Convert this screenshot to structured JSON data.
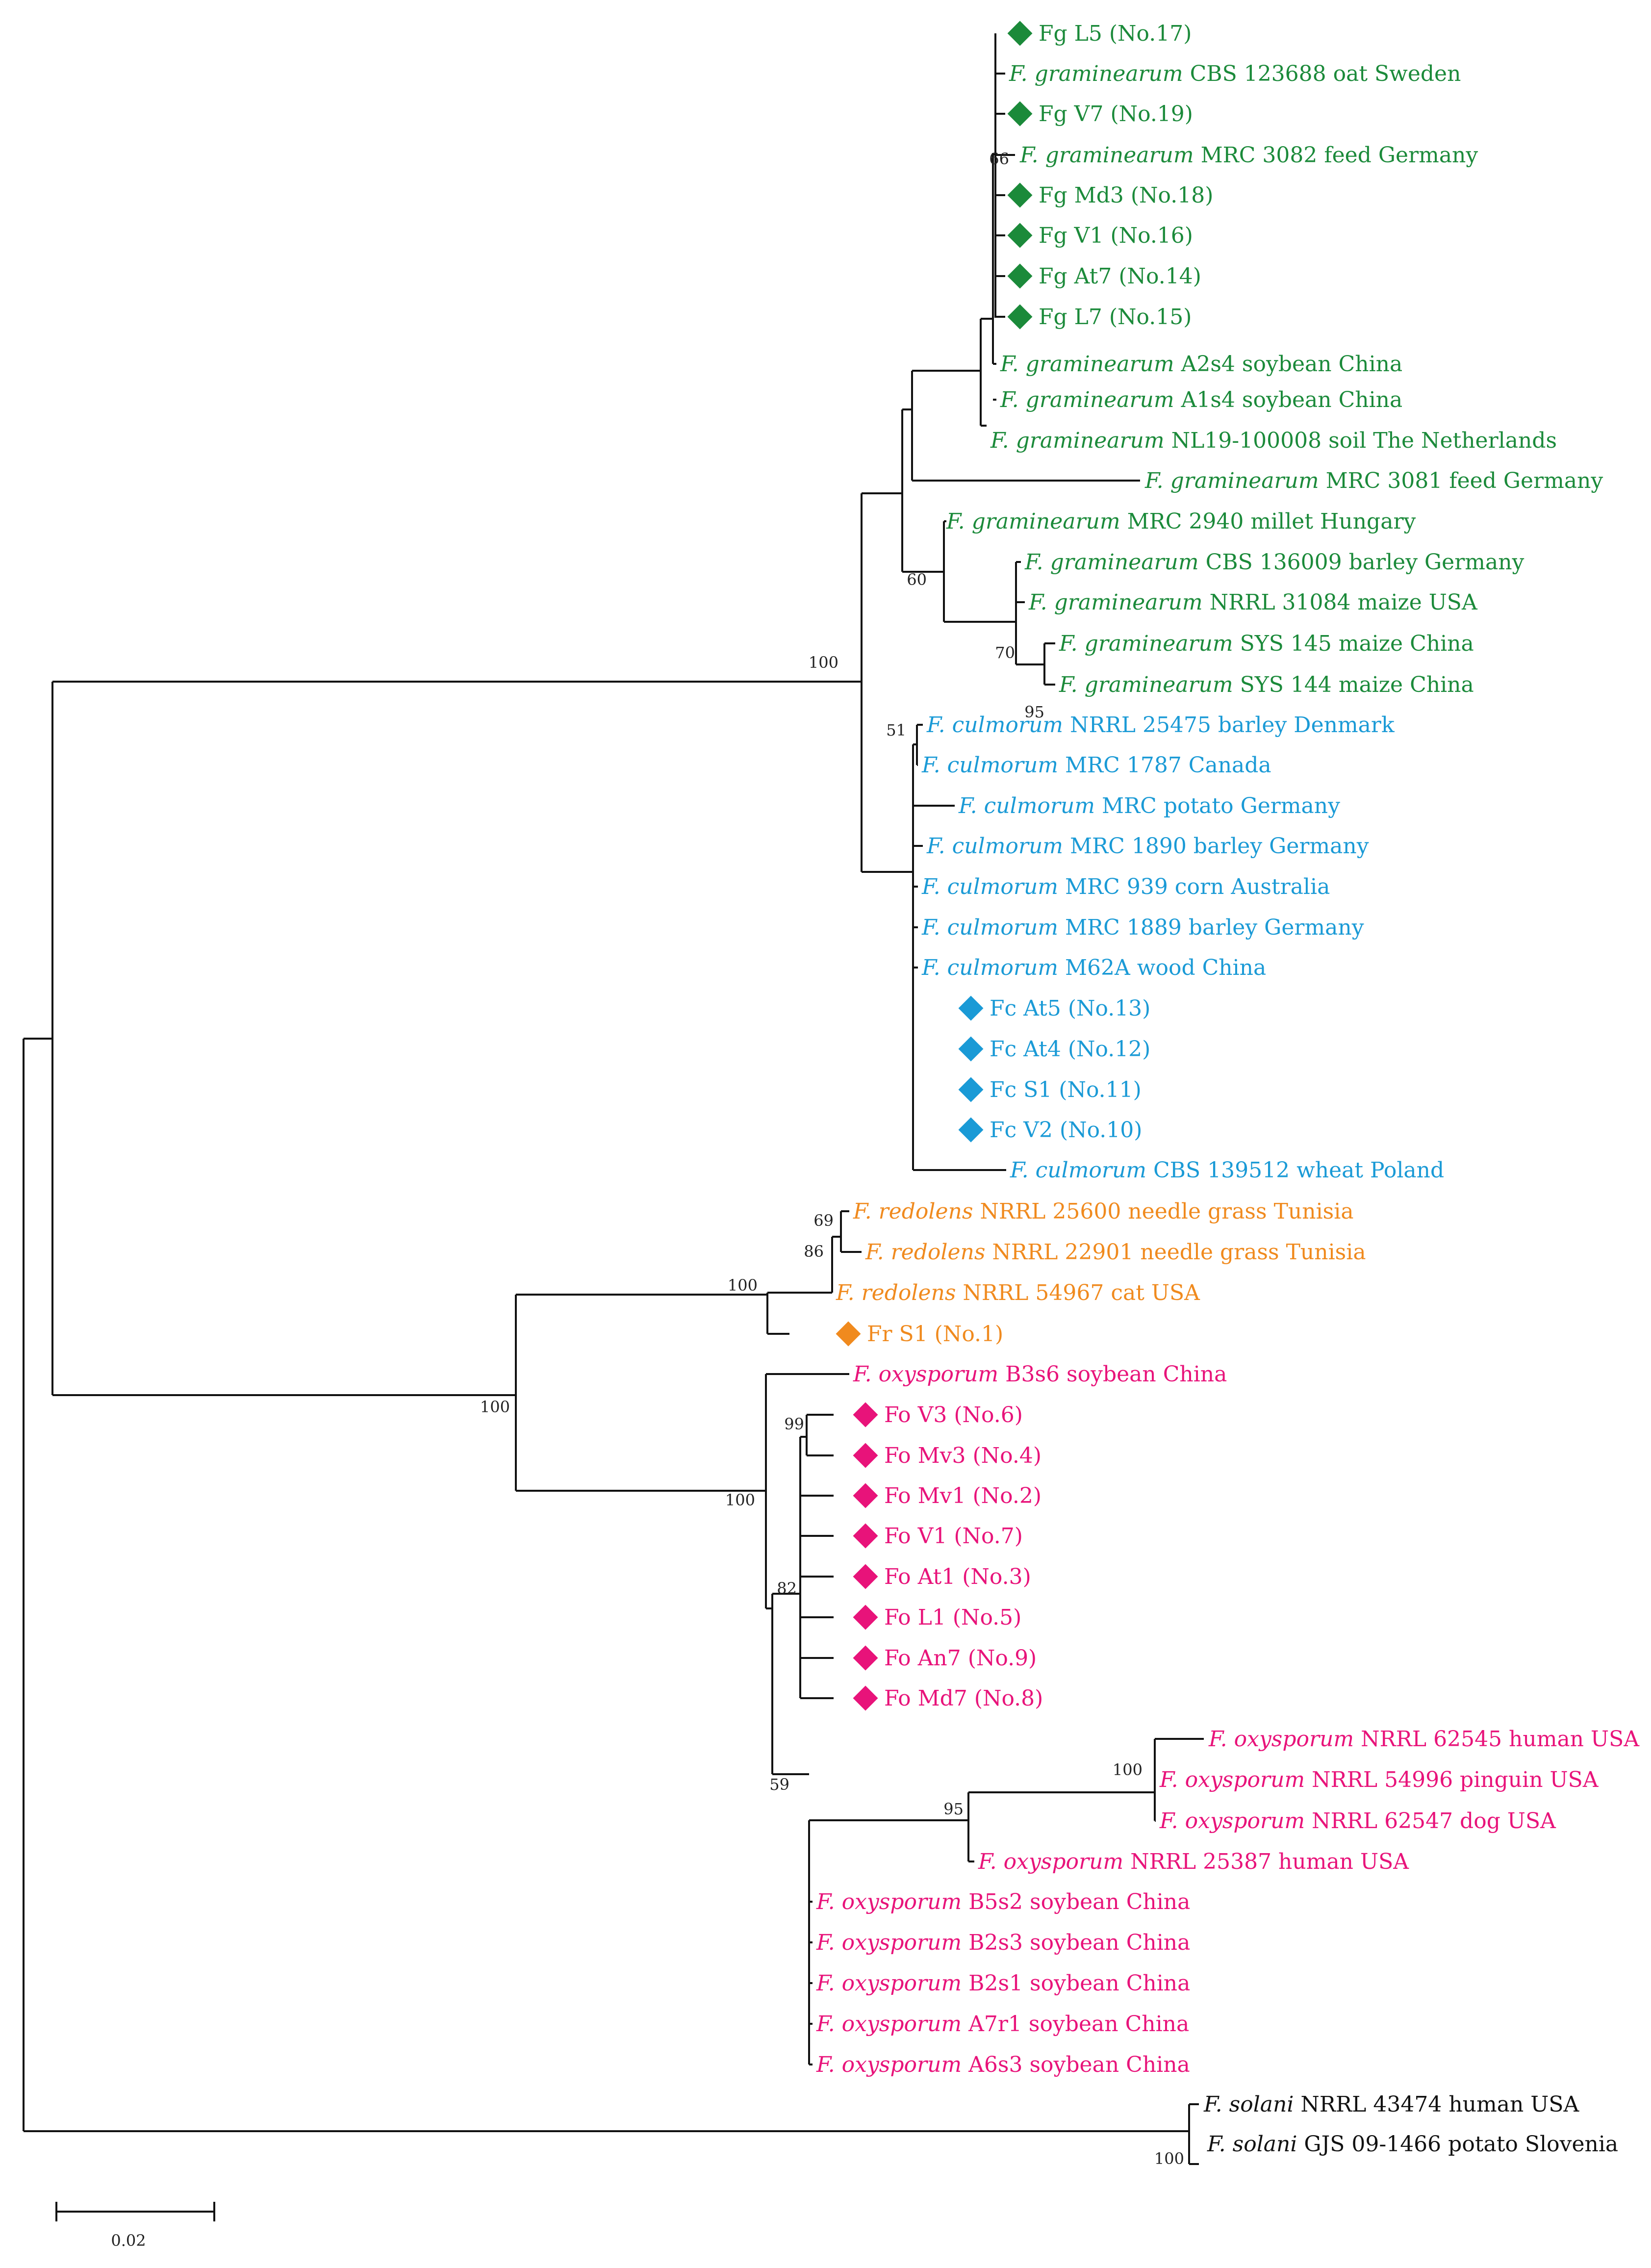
{
  "colors": {
    "graminearum": "#1b8a3a",
    "culmorum": "#1a9ad6",
    "redolens": "#f08a1e",
    "oxysporum": "#e8137a",
    "solani": "#111111",
    "line": "#111111"
  },
  "scale_bar": {
    "value": 0.02,
    "label": "0.02"
  },
  "tips": [
    {
      "id": "fgL5",
      "plain": "Fg L5 (No.17)",
      "group": "graminearum",
      "marker": true
    },
    {
      "id": "fgCBS123688",
      "species": "F. graminearum",
      "rest": " CBS 123688 oat Sweden",
      "group": "graminearum"
    },
    {
      "id": "fgV7",
      "plain": "Fg V7 (No.19)",
      "group": "graminearum",
      "marker": true
    },
    {
      "id": "fgMRC3082",
      "species": "F. graminearum",
      "rest": " MRC 3082 feed Germany",
      "group": "graminearum"
    },
    {
      "id": "fgMd3",
      "plain": "Fg Md3 (No.18)",
      "group": "graminearum",
      "marker": true
    },
    {
      "id": "fgV1",
      "plain": "Fg V1 (No.16)",
      "group": "graminearum",
      "marker": true
    },
    {
      "id": "fgAt7",
      "plain": "Fg At7 (No.14)",
      "group": "graminearum",
      "marker": true
    },
    {
      "id": "fgL7",
      "plain": "Fg L7 (No.15)",
      "group": "graminearum",
      "marker": true
    },
    {
      "id": "fgA2s4",
      "species": "F. graminearum",
      "rest": " A2s4 soybean China",
      "group": "graminearum"
    },
    {
      "id": "fgA1s4",
      "species": "F. graminearum",
      "rest": " A1s4 soybean China",
      "group": "graminearum"
    },
    {
      "id": "fgNL19",
      "species": "F. graminearum",
      "rest": " NL19-100008 soil The Netherlands",
      "group": "graminearum"
    },
    {
      "id": "fgMRC3081",
      "species": "F. graminearum",
      "rest": " MRC 3081 feed Germany",
      "group": "graminearum"
    },
    {
      "id": "fgMRC2940",
      "species": "F. graminearum",
      "rest": " MRC 2940 millet Hungary",
      "group": "graminearum"
    },
    {
      "id": "fgCBS136009",
      "species": "F. graminearum",
      "rest": " CBS 136009 barley Germany",
      "group": "graminearum"
    },
    {
      "id": "fgNRRL31084",
      "species": "F. graminearum",
      "rest": " NRRL 31084 maize USA",
      "group": "graminearum"
    },
    {
      "id": "fgSYS145",
      "species": "F. graminearum",
      "rest": " SYS 145 maize China",
      "group": "graminearum"
    },
    {
      "id": "fgSYS144",
      "species": "F. graminearum",
      "rest": " SYS 144 maize China",
      "group": "graminearum"
    },
    {
      "id": "fcNRRL25475",
      "species": "F. culmorum",
      "rest": " NRRL 25475 barley Denmark",
      "group": "culmorum"
    },
    {
      "id": "fcMRC1787",
      "species": "F. culmorum",
      "rest": " MRC 1787 Canada",
      "group": "culmorum"
    },
    {
      "id": "fcMRCpotato",
      "species": "F. culmorum",
      "rest": " MRC potato Germany",
      "group": "culmorum"
    },
    {
      "id": "fcMRC1890",
      "species": "F. culmorum",
      "rest": " MRC 1890 barley Germany",
      "group": "culmorum"
    },
    {
      "id": "fcMRC939",
      "species": "F. culmorum",
      "rest": " MRC 939 corn Australia",
      "group": "culmorum"
    },
    {
      "id": "fcMRC1889",
      "species": "F. culmorum",
      "rest": " MRC 1889 barley Germany",
      "group": "culmorum"
    },
    {
      "id": "fcM62A",
      "species": "F. culmorum",
      "rest": " M62A wood China",
      "group": "culmorum"
    },
    {
      "id": "fcAt5",
      "plain": "Fc At5 (No.13)",
      "group": "culmorum",
      "marker": true
    },
    {
      "id": "fcAt4",
      "plain": "Fc At4 (No.12)",
      "group": "culmorum",
      "marker": true
    },
    {
      "id": "fcS1",
      "plain": "Fc S1 (No.11)",
      "group": "culmorum",
      "marker": true
    },
    {
      "id": "fcV2",
      "plain": "Fc V2 (No.10)",
      "group": "culmorum",
      "marker": true
    },
    {
      "id": "fcCBS139512",
      "species": "F. culmorum",
      "rest": " CBS 139512 wheat Poland",
      "group": "culmorum"
    },
    {
      "id": "frNRRL25600",
      "species": "F. redolens",
      "rest": " NRRL 25600 needle grass Tunisia",
      "group": "redolens"
    },
    {
      "id": "frNRRL22901",
      "species": "F. redolens",
      "rest": " NRRL 22901 needle grass Tunisia",
      "group": "redolens"
    },
    {
      "id": "frNRRL54967",
      "species": "F. redolens",
      "rest": " NRRL 54967 cat USA",
      "group": "redolens"
    },
    {
      "id": "frS1",
      "plain": "Fr S1 (No.1)",
      "group": "redolens",
      "marker": true
    },
    {
      "id": "foB3s6",
      "species": "F. oxysporum",
      "rest": " B3s6 soybean China",
      "group": "oxysporum"
    },
    {
      "id": "foV3",
      "plain": "Fo V3 (No.6)",
      "group": "oxysporum",
      "marker": true
    },
    {
      "id": "foMv3",
      "plain": "Fo Mv3 (No.4)",
      "group": "oxysporum",
      "marker": true
    },
    {
      "id": "foMv1",
      "plain": "Fo Mv1 (No.2)",
      "group": "oxysporum",
      "marker": true
    },
    {
      "id": "foV1",
      "plain": "Fo V1 (No.7)",
      "group": "oxysporum",
      "marker": true
    },
    {
      "id": "foAt1",
      "plain": "Fo At1 (No.3)",
      "group": "oxysporum",
      "marker": true
    },
    {
      "id": "foL1",
      "plain": "Fo L1 (No.5)",
      "group": "oxysporum",
      "marker": true
    },
    {
      "id": "foAn7",
      "plain": "Fo An7 (No.9)",
      "group": "oxysporum",
      "marker": true
    },
    {
      "id": "foMd7",
      "plain": "Fo Md7 (No.8)",
      "group": "oxysporum",
      "marker": true
    },
    {
      "id": "foNRRL62545",
      "species": "F. oxysporum",
      "rest": " NRRL 62545 human USA",
      "group": "oxysporum"
    },
    {
      "id": "foNRRL54996",
      "species": "F. oxysporum",
      "rest": " NRRL 54996 pinguin USA",
      "group": "oxysporum"
    },
    {
      "id": "foNRRL62547",
      "species": "F. oxysporum",
      "rest": " NRRL 62547 dog USA",
      "group": "oxysporum"
    },
    {
      "id": "foNRRL25387",
      "species": "F. oxysporum",
      "rest": " NRRL 25387 human USA",
      "group": "oxysporum"
    },
    {
      "id": "foB5s2",
      "species": "F. oxysporum",
      "rest": " B5s2 soybean China",
      "group": "oxysporum"
    },
    {
      "id": "foB2s3",
      "species": "F. oxysporum",
      "rest": " B2s3 soybean China",
      "group": "oxysporum"
    },
    {
      "id": "foB2s1",
      "species": "F. oxysporum",
      "rest": " B2s1 soybean China",
      "group": "oxysporum"
    },
    {
      "id": "foA7r1",
      "species": "F. oxysporum",
      "rest": " A7r1 soybean China",
      "group": "oxysporum"
    },
    {
      "id": "foA6s3",
      "species": "F. oxysporum",
      "rest": " A6s3 soybean China",
      "group": "oxysporum"
    },
    {
      "id": "fsNRRL43474",
      "species": "F. solani",
      "rest": " NRRL 43474 human USA",
      "group": "solani"
    },
    {
      "id": "fsGJS09",
      "species": "F. solani",
      "rest": " GJS 09-1466 potato Slovenia",
      "group": "solani"
    }
  ],
  "bootstrap": [
    {
      "id": "b66",
      "value": "66"
    },
    {
      "id": "b60",
      "value": "60"
    },
    {
      "id": "b70",
      "value": "70"
    },
    {
      "id": "b95a",
      "value": "95"
    },
    {
      "id": "b100root",
      "value": "100"
    },
    {
      "id": "b51",
      "value": "51"
    },
    {
      "id": "b69",
      "value": "69"
    },
    {
      "id": "b86",
      "value": "86"
    },
    {
      "id": "b100red",
      "value": "100"
    },
    {
      "id": "b100fo",
      "value": "100"
    },
    {
      "id": "b100oxy",
      "value": "100"
    },
    {
      "id": "b99",
      "value": "99"
    },
    {
      "id": "b82",
      "value": "82"
    },
    {
      "id": "b59",
      "value": "59"
    },
    {
      "id": "b95b",
      "value": "95"
    },
    {
      "id": "b100usa",
      "value": "100"
    },
    {
      "id": "b100sol",
      "value": "100"
    }
  ]
}
